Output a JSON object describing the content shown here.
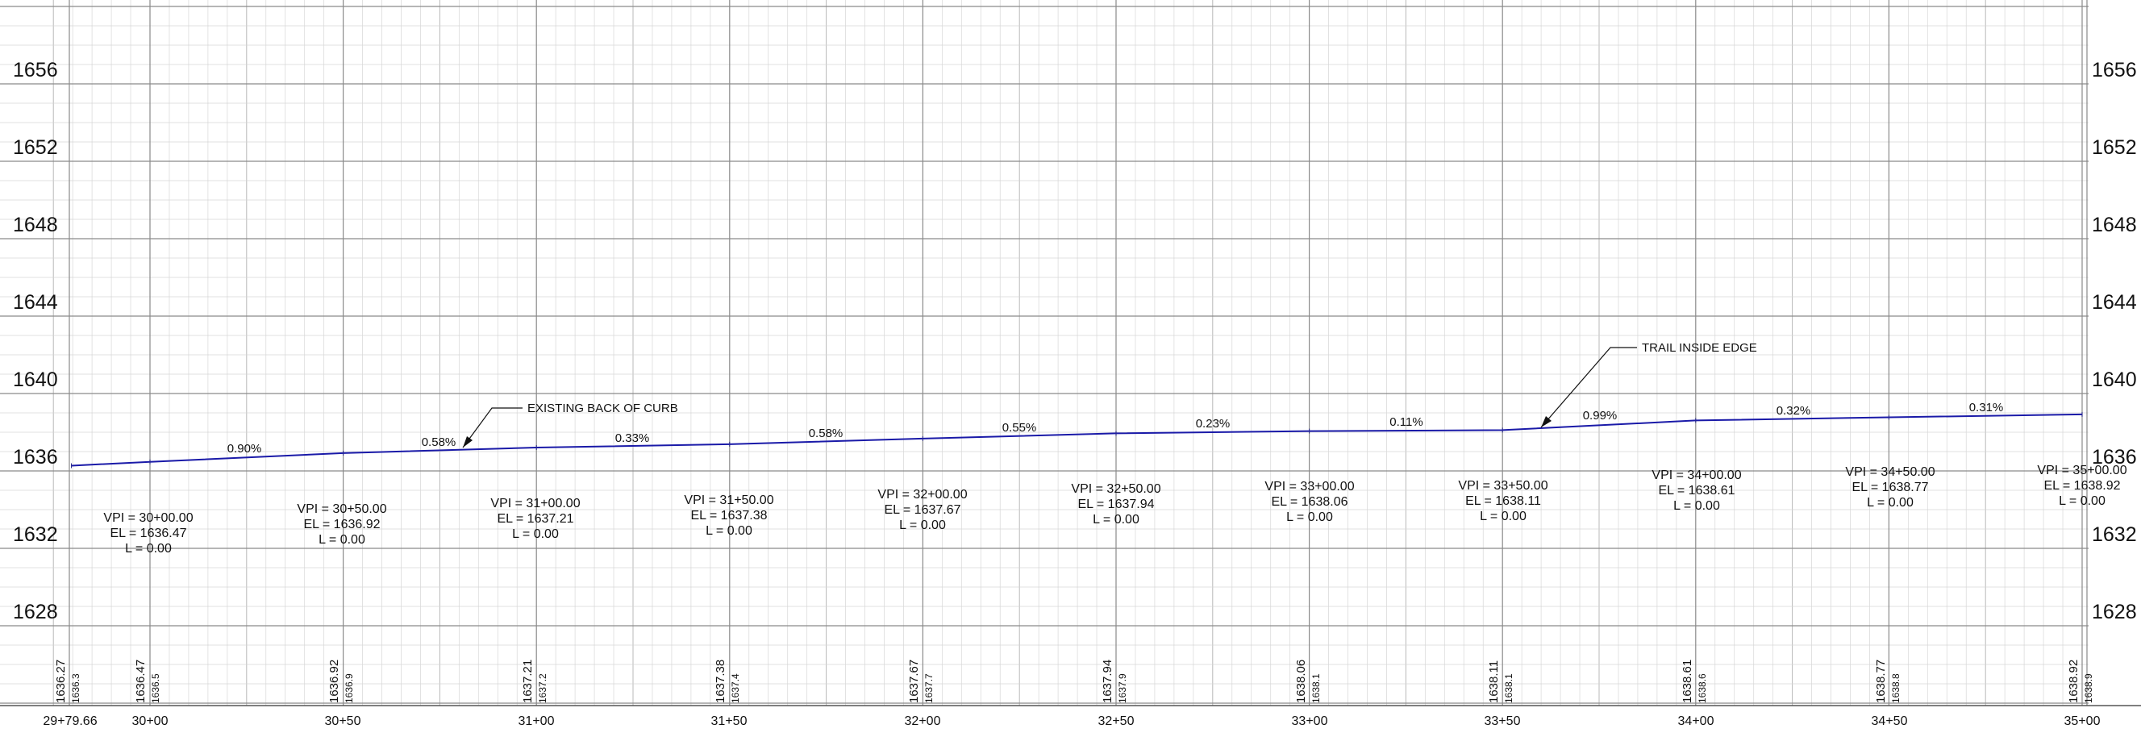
{
  "elevation_labels": [
    "1656",
    "1652",
    "1648",
    "1644",
    "1640",
    "1636",
    "1632",
    "1628"
  ],
  "station_labels": [
    "29+79.66",
    "30+00",
    "30+50",
    "31+00",
    "31+50",
    "32+00",
    "32+50",
    "33+00",
    "33+50",
    "34+00",
    "34+50",
    "35+00"
  ],
  "profile": {
    "line_color": "#1a1aa8",
    "start": {
      "station": "29+79.66",
      "elevation": 1636.27
    },
    "vpis": [
      {
        "station_value": 3000,
        "vpi": "VPI = 30+00.00",
        "el": "EL = 1636.47",
        "l": "L = 0.00",
        "elevation": 1636.47
      },
      {
        "station_value": 3050,
        "vpi": "VPI = 30+50.00",
        "el": "EL = 1636.92",
        "l": "L = 0.00",
        "elevation": 1636.92
      },
      {
        "station_value": 3100,
        "vpi": "VPI = 31+00.00",
        "el": "EL = 1637.21",
        "l": "L = 0.00",
        "elevation": 1637.21
      },
      {
        "station_value": 3150,
        "vpi": "VPI = 31+50.00",
        "el": "EL = 1637.38",
        "l": "L = 0.00",
        "elevation": 1637.38
      },
      {
        "station_value": 3200,
        "vpi": "VPI = 32+00.00",
        "el": "EL = 1637.67",
        "l": "L = 0.00",
        "elevation": 1637.67
      },
      {
        "station_value": 3250,
        "vpi": "VPI = 32+50.00",
        "el": "EL = 1637.94",
        "l": "L = 0.00",
        "elevation": 1637.94
      },
      {
        "station_value": 3300,
        "vpi": "VPI = 33+00.00",
        "el": "EL = 1638.06",
        "l": "L = 0.00",
        "elevation": 1638.06
      },
      {
        "station_value": 3350,
        "vpi": "VPI = 33+50.00",
        "el": "EL = 1638.11",
        "l": "L = 0.00",
        "elevation": 1638.11
      },
      {
        "station_value": 3400,
        "vpi": "VPI = 34+00.00",
        "el": "EL = 1638.61",
        "l": "L = 0.00",
        "elevation": 1638.61
      },
      {
        "station_value": 3450,
        "vpi": "VPI = 34+50.00",
        "el": "EL = 1638.77",
        "l": "L = 0.00",
        "elevation": 1638.77
      },
      {
        "station_value": 3500,
        "vpi": "VPI = 35+00.00",
        "el": "EL = 1638.92",
        "l": "L = 0.00",
        "elevation": 1638.92
      }
    ]
  },
  "grades": [
    "0.90%",
    "0.58%",
    "0.33%",
    "0.58%",
    "0.55%",
    "0.23%",
    "0.11%",
    "0.99%",
    "0.32%",
    "0.31%"
  ],
  "callouts": {
    "curb": "EXISTING BACK OF CURB",
    "trail": "TRAIL INSIDE EDGE"
  },
  "bottom_elevations": [
    {
      "big": "1636.27",
      "small": "1636.3"
    },
    {
      "big": "1636.47",
      "small": "1636.5"
    },
    {
      "big": "1636.92",
      "small": "1636.9"
    },
    {
      "big": "1637.21",
      "small": "1637.2"
    },
    {
      "big": "1637.38",
      "small": "1637.4"
    },
    {
      "big": "1637.67",
      "small": "1637.7"
    },
    {
      "big": "1637.94",
      "small": "1637.9"
    },
    {
      "big": "1638.06",
      "small": "1638.1"
    },
    {
      "big": "1638.11",
      "small": "1638.1"
    },
    {
      "big": "1638.61",
      "small": "1638.6"
    },
    {
      "big": "1638.77",
      "small": "1638.8"
    },
    {
      "big": "1638.92",
      "small": "1638.9"
    }
  ]
}
